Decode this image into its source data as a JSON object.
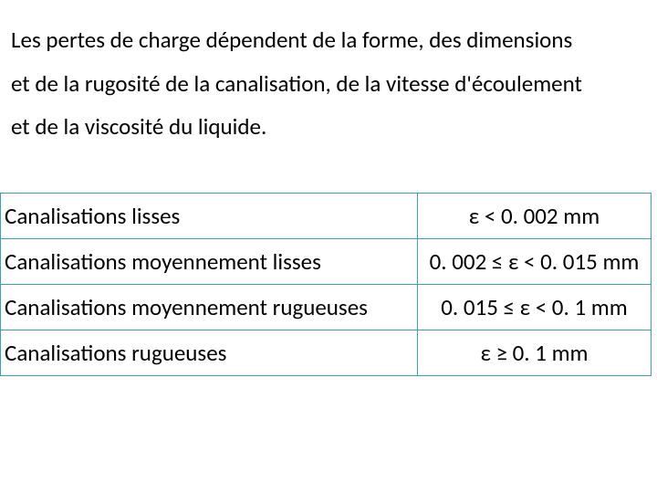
{
  "paragraph": {
    "line1": "Les pertes de charge dépendent de la forme, des dimensions",
    "line2": "et de la rugosité de la canalisation, de la vitesse d'écoulement",
    "line3": "et de la viscosité du liquide."
  },
  "table": {
    "border_color": "#3aa0b5",
    "rows": [
      {
        "label": "Canalisations lisses",
        "value": "ε < 0. 002 mm"
      },
      {
        "label": "Canalisations moyennement lisses",
        "value": "0. 002 ≤ ε < 0. 015 mm"
      },
      {
        "label": "Canalisations moyennement rugueuses",
        "value": "0. 015 ≤ ε < 0. 1 mm"
      },
      {
        "label": "Canalisations rugueuses",
        "value": "ε ≥ 0. 1 mm"
      }
    ]
  },
  "style": {
    "background_color": "#ffffff",
    "text_color": "#000000",
    "font_family": "Calibri",
    "font_size_pt": 19,
    "epsilon_glyph": "ε",
    "leq_glyph": "≤",
    "geq_glyph": "≥"
  }
}
